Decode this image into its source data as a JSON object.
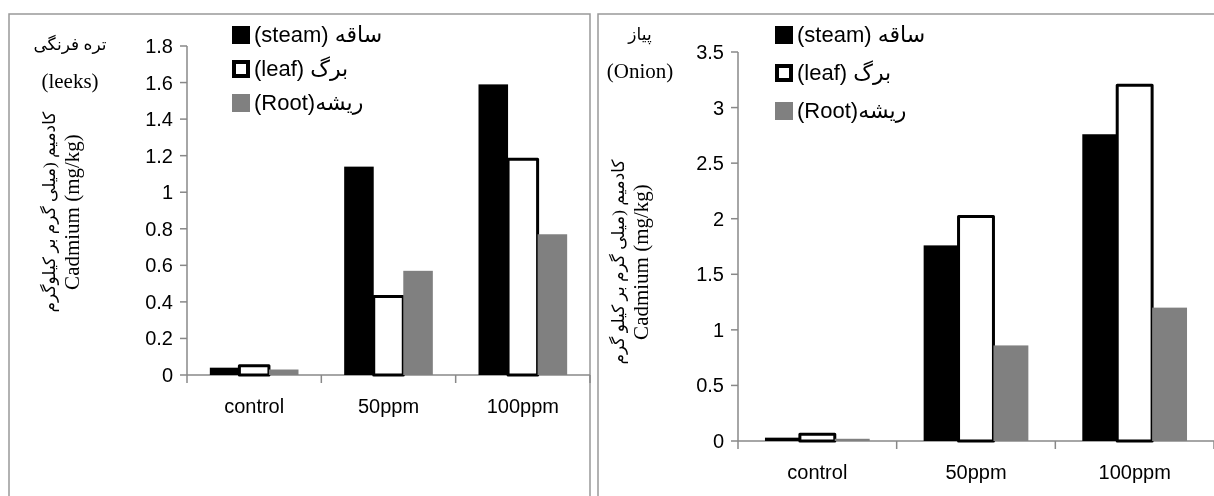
{
  "chart_data": [
    {
      "type": "bar",
      "title": "تره فرنگی\n(leeks)",
      "ylabel": "کادمیم (میلی گرم بر کیلوگرم\nCadmium (mg/kg)",
      "categories": [
        "control",
        "50ppm",
        "100ppm"
      ],
      "series": [
        {
          "name": "(steam) ساقه",
          "color": "#000000",
          "values": [
            0.04,
            1.14,
            1.59
          ]
        },
        {
          "name": "(leaf) برگ",
          "color": "#ffffff",
          "values": [
            0.05,
            0.43,
            1.18
          ]
        },
        {
          "name": "(Root)ریشه",
          "color": "#808080",
          "values": [
            0.03,
            0.57,
            0.77
          ]
        }
      ],
      "ylim": [
        0,
        1.8
      ],
      "yticks": [
        0,
        0.2,
        0.4,
        0.6,
        0.8,
        1,
        1.2,
        1.4,
        1.6,
        1.8
      ],
      "legend": "top left",
      "grid": false
    },
    {
      "type": "bar",
      "title": "پیاز\n(Onion)",
      "ylabel": "کادمیم (میلی گرم بر کیلو گرم\nCadmium (mg/kg)",
      "categories": [
        "control",
        "50ppm",
        "100ppm"
      ],
      "series": [
        {
          "name": "(steam) ساقه",
          "color": "#000000",
          "values": [
            0.03,
            1.76,
            2.76
          ]
        },
        {
          "name": "(leaf) برگ",
          "color": "#ffffff",
          "values": [
            0.06,
            2.02,
            3.2
          ]
        },
        {
          "name": "(Root)ریشه",
          "color": "#808080",
          "values": [
            0.02,
            0.86,
            1.2
          ]
        }
      ],
      "ylim": [
        0,
        3.5
      ],
      "yticks": [
        0,
        0.5,
        1,
        1.5,
        2,
        2.5,
        3,
        3.5
      ],
      "legend": "top left",
      "grid": false
    }
  ]
}
